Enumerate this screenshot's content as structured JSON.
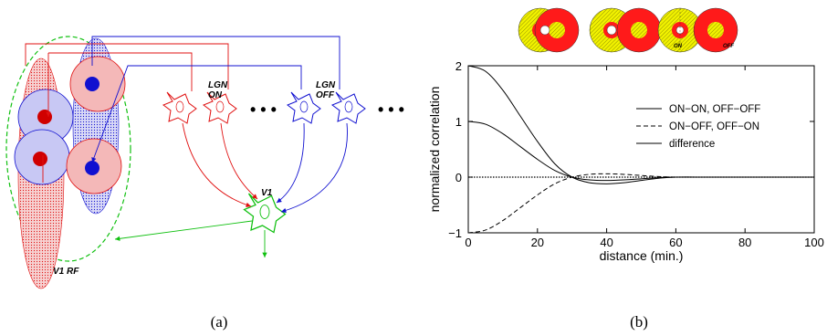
{
  "panel_a": {
    "caption": "(a)",
    "lgn_on_label_1": "LGN",
    "lgn_on_label_2": "ON",
    "lgn_off_label_1": "LGN",
    "lgn_off_label_2": "OFF",
    "v1_label": "V1",
    "v1_rf_label": "V1 RF",
    "ellipsis": "• • •",
    "colors": {
      "on": "#e01010",
      "off": "#1010d0",
      "v1": "#10c010",
      "on_fill": "#f4b8b8",
      "off_fill": "#c8c8f4"
    }
  },
  "panel_b": {
    "caption": "(b)",
    "icon_on_label": "ON",
    "icon_off_label": "OFF",
    "colors": {
      "center_surround_on": "#ff1a1a",
      "center_surround_off": "#e6e600"
    }
  },
  "chart_data": {
    "type": "line",
    "xlabel": "distance (min.)",
    "ylabel": "normalized correlation",
    "xlim": [
      0,
      100
    ],
    "ylim": [
      -1,
      2
    ],
    "xticks": [
      0,
      20,
      40,
      60,
      80,
      100
    ],
    "yticks": [
      -1,
      0,
      1,
      2
    ],
    "legend_position": "right",
    "series": [
      {
        "name": "ON−ON, OFF−OFF",
        "style": "solid",
        "x": [
          0,
          5,
          10,
          15,
          20,
          25,
          30,
          35,
          40,
          45,
          50,
          55,
          60,
          70,
          80,
          90,
          100
        ],
        "y": [
          1.0,
          0.95,
          0.78,
          0.55,
          0.32,
          0.12,
          0.0,
          -0.05,
          -0.06,
          -0.05,
          -0.03,
          -0.01,
          0.0,
          0.0,
          0.0,
          0.0,
          0.0
        ]
      },
      {
        "name": "ON−OFF, OFF−ON",
        "style": "dashed",
        "x": [
          0,
          5,
          10,
          15,
          20,
          25,
          30,
          35,
          40,
          45,
          50,
          55,
          60,
          70,
          80,
          90,
          100
        ],
        "y": [
          -1.0,
          -0.95,
          -0.78,
          -0.55,
          -0.32,
          -0.12,
          0.0,
          0.05,
          0.06,
          0.05,
          0.03,
          0.01,
          0.0,
          0.0,
          0.0,
          0.0,
          0.0
        ]
      },
      {
        "name": "difference",
        "style": "solid",
        "x": [
          0,
          5,
          10,
          15,
          20,
          25,
          30,
          35,
          40,
          45,
          50,
          55,
          60,
          70,
          80,
          90,
          100
        ],
        "y": [
          2.0,
          1.9,
          1.56,
          1.1,
          0.64,
          0.24,
          0.0,
          -0.1,
          -0.12,
          -0.1,
          -0.06,
          -0.02,
          0.0,
          0.0,
          0.0,
          0.0,
          0.0
        ]
      }
    ],
    "reference_line": {
      "y": 0,
      "style": "dotted"
    }
  }
}
